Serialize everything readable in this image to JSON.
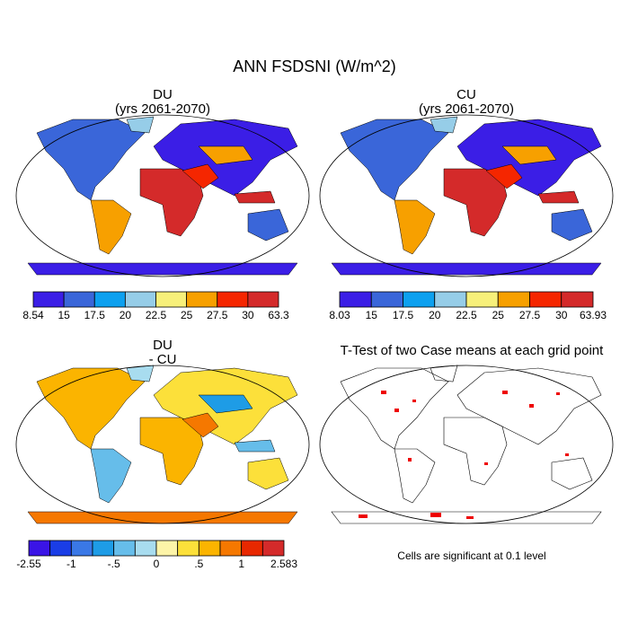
{
  "title": "ANN FSDSNI (W/m^2)",
  "panels": [
    {
      "title": "DU",
      "subtitle": "(yrs 2061-2070)",
      "colorbar": {
        "colors": [
          "#3b1ee6",
          "#3a66d9",
          "#0da0ef",
          "#96cde8",
          "#f7f07a",
          "#f7a000",
          "#f52600",
          "#d42a2a"
        ],
        "labels": [
          "8.54",
          "15",
          "17.5",
          "20",
          "22.5",
          "25",
          "27.5",
          "30",
          "63.3"
        ]
      }
    },
    {
      "title": "CU",
      "subtitle": "(yrs 2061-2070)",
      "colorbar": {
        "colors": [
          "#3b1ee6",
          "#3a66d9",
          "#0da0ef",
          "#96cde8",
          "#f7f07a",
          "#f7a000",
          "#f52600",
          "#d42a2a"
        ],
        "labels": [
          "8.03",
          "15",
          "17.5",
          "20",
          "22.5",
          "25",
          "27.5",
          "30",
          "63.93"
        ]
      }
    },
    {
      "title": "DU",
      "subtitle": "- CU",
      "colorbar": {
        "colors": [
          "#3a14e6",
          "#1a3de6",
          "#3a78e6",
          "#1e9ce6",
          "#66bdea",
          "#a8dcef",
          "#fdf4a8",
          "#fce03a",
          "#fbb400",
          "#f57800",
          "#e82800",
          "#d42a2a"
        ],
        "labels": [
          "-2.55",
          null,
          "-1",
          null,
          "-.5",
          null,
          "0",
          null,
          ".5",
          null,
          "1",
          null,
          "2.583"
        ]
      }
    }
  ],
  "ttest": {
    "title": "T-Test of two Case means at each grid point",
    "note": "Cells are significant at 0.1 level"
  }
}
